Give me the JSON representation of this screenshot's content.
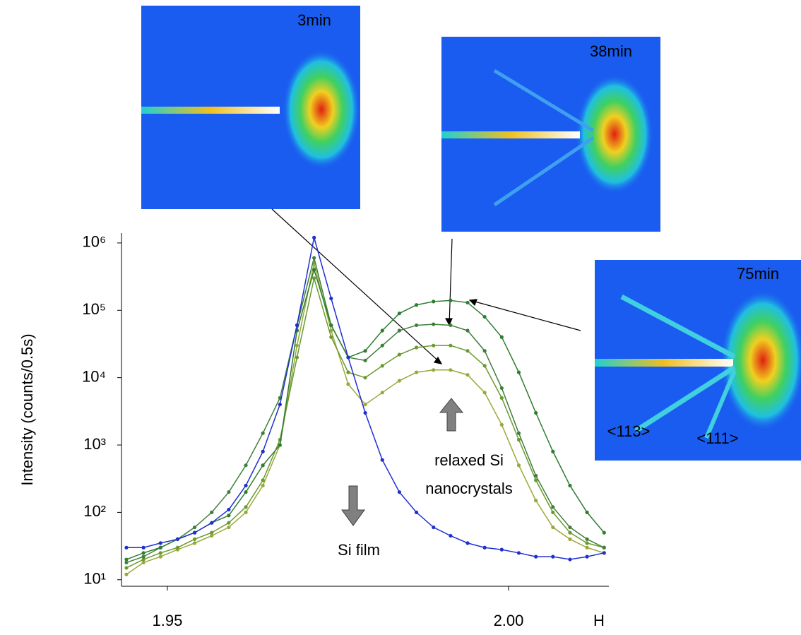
{
  "chart_data": {
    "type": "line",
    "y_label": "Intensity (counts/0.5s)",
    "x_label": "H",
    "log_scale": "y",
    "grid": false,
    "x": [
      1.944,
      1.9465,
      1.949,
      1.9515,
      1.954,
      1.9565,
      1.959,
      1.9615,
      1.964,
      1.9665,
      1.969,
      1.9715,
      1.974,
      1.9765,
      1.979,
      1.9815,
      1.984,
      1.9865,
      1.989,
      1.9915,
      1.994,
      1.9965,
      1.999,
      2.0015,
      2.004,
      2.0065,
      2.009,
      2.0115,
      2.014
    ],
    "xlim": [
      1.9439,
      2.0147
    ],
    "xticks": [
      1.95,
      {
        "value": 2,
        "label": "2.00"
      }
    ],
    "ylim": [
      8,
      1400000
    ],
    "yticks": [
      {
        "value": 10,
        "label": "10¹"
      },
      {
        "value": 100,
        "label": "10²"
      },
      {
        "value": 1000,
        "label": "10³"
      },
      {
        "value": 10000,
        "label": "10⁴"
      },
      {
        "value": 100000,
        "label": "10⁵"
      },
      {
        "value": 1000000,
        "label": "10⁶"
      }
    ],
    "series": [
      {
        "color": "#9aa83a",
        "values": [
          12,
          18,
          22,
          28,
          35,
          45,
          60,
          100,
          250,
          1000,
          30000,
          500000,
          50000,
          8000,
          4000,
          6000,
          9000,
          12000,
          13000,
          13000,
          11000,
          6000,
          2000,
          500,
          150,
          60,
          40,
          30,
          25
        ]
      },
      {
        "color": "#6b9a2e",
        "values": [
          15,
          20,
          25,
          30,
          40,
          50,
          70,
          120,
          300,
          1200,
          20000,
          300000,
          40000,
          12000,
          10000,
          15000,
          22000,
          28000,
          30000,
          30000,
          25000,
          15000,
          5000,
          1200,
          300,
          100,
          50,
          35,
          30
        ]
      },
      {
        "color": "#3f7f3a",
        "values": [
          18,
          22,
          30,
          40,
          60,
          100,
          200,
          500,
          1500,
          5000,
          60000,
          600000,
          60000,
          20000,
          18000,
          30000,
          50000,
          60000,
          62000,
          60000,
          50000,
          25000,
          7000,
          1500,
          350,
          120,
          60,
          40,
          30
        ]
      },
      {
        "color": "#2e7d32",
        "values": [
          20,
          25,
          30,
          40,
          50,
          70,
          90,
          200,
          500,
          1000,
          50000,
          400000,
          60000,
          20000,
          25000,
          50000,
          90000,
          120000,
          135000,
          140000,
          130000,
          80000,
          40000,
          12000,
          3000,
          800,
          250,
          100,
          50
        ]
      },
      {
        "color": "#1f2fd0",
        "values": [
          30,
          30,
          35,
          40,
          50,
          70,
          110,
          250,
          800,
          4000,
          60000,
          1200000,
          150000,
          20000,
          3000,
          600,
          200,
          100,
          60,
          45,
          35,
          30,
          28,
          25,
          22,
          22,
          20,
          22,
          25
        ]
      }
    ],
    "annotations": [
      "3min",
      "38min",
      "75min",
      "<113>",
      "<111>",
      "relaxed Si",
      "nanocrystals",
      "Si film"
    ]
  }
}
